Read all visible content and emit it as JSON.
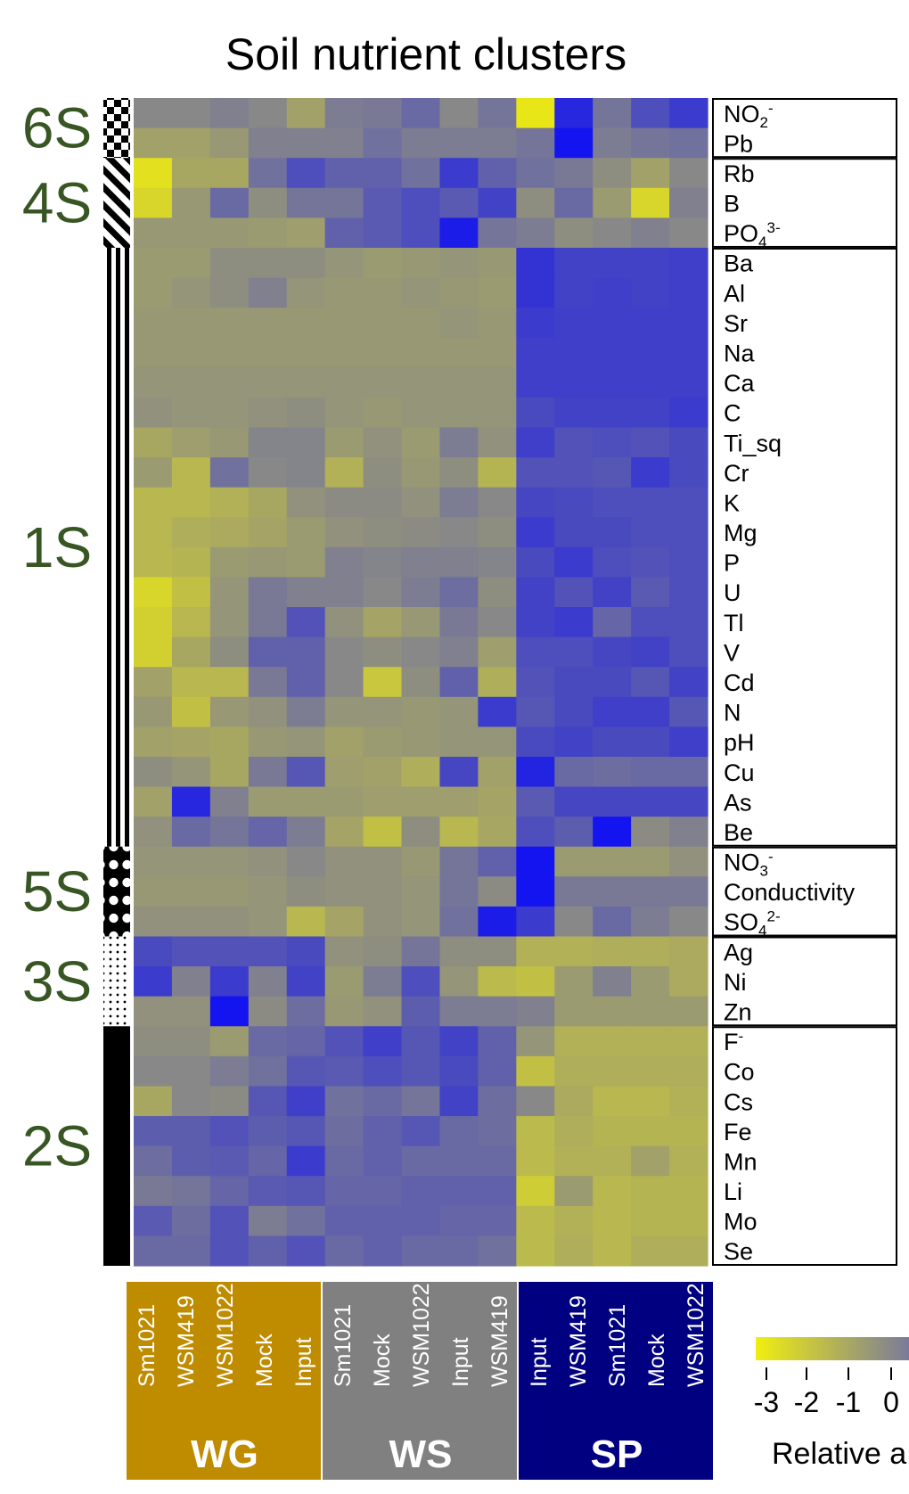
{
  "chart_data": {
    "type": "heatmap",
    "title": "Soil nutrient clusters",
    "colorscale": {
      "low_color": "#e8e617",
      "mid_color": "#888888",
      "high_color": "#1414f0",
      "range": [
        -3,
        3
      ],
      "ticks": [
        "-3",
        "-2",
        "-1",
        "0"
      ],
      "label": "Relative a"
    },
    "rows": [
      "NO2-",
      "Pb",
      "Rb",
      "B",
      "PO43-",
      "Ba",
      "Al",
      "Sr",
      "Na",
      "Ca",
      "C",
      "Ti_sq",
      "Cr",
      "K",
      "Mg",
      "P",
      "U",
      "Tl",
      "V",
      "Cd",
      "N",
      "pH",
      "Cu",
      "As",
      "Be",
      "NO3-",
      "Conductivity",
      "SO42-",
      "Ag",
      "Ni",
      "Zn",
      "F-",
      "Co",
      "Cs",
      "Fe",
      "Mn",
      "Li",
      "Mo",
      "Se"
    ],
    "row_labels": [
      {
        "base": "NO",
        "sub": "2",
        "sup": "-"
      },
      {
        "base": "Pb",
        "sub": "",
        "sup": ""
      },
      {
        "base": "Rb",
        "sub": "",
        "sup": ""
      },
      {
        "base": "B",
        "sub": "",
        "sup": ""
      },
      {
        "base": "PO",
        "sub": "4",
        "sup": "3-"
      },
      {
        "base": "Ba",
        "sub": "",
        "sup": ""
      },
      {
        "base": "Al",
        "sub": "",
        "sup": ""
      },
      {
        "base": "Sr",
        "sub": "",
        "sup": ""
      },
      {
        "base": "Na",
        "sub": "",
        "sup": ""
      },
      {
        "base": "Ca",
        "sub": "",
        "sup": ""
      },
      {
        "base": "C",
        "sub": "",
        "sup": ""
      },
      {
        "base": "Ti_sq",
        "sub": "",
        "sup": ""
      },
      {
        "base": "Cr",
        "sub": "",
        "sup": ""
      },
      {
        "base": "K",
        "sub": "",
        "sup": ""
      },
      {
        "base": "Mg",
        "sub": "",
        "sup": ""
      },
      {
        "base": "P",
        "sub": "",
        "sup": ""
      },
      {
        "base": "U",
        "sub": "",
        "sup": ""
      },
      {
        "base": "Tl",
        "sub": "",
        "sup": ""
      },
      {
        "base": "V",
        "sub": "",
        "sup": ""
      },
      {
        "base": "Cd",
        "sub": "",
        "sup": ""
      },
      {
        "base": "N",
        "sub": "",
        "sup": ""
      },
      {
        "base": "pH",
        "sub": "",
        "sup": ""
      },
      {
        "base": "Cu",
        "sub": "",
        "sup": ""
      },
      {
        "base": "As",
        "sub": "",
        "sup": ""
      },
      {
        "base": "Be",
        "sub": "",
        "sup": ""
      },
      {
        "base": "NO",
        "sub": "3",
        "sup": "-"
      },
      {
        "base": "Conductivity",
        "sub": "",
        "sup": ""
      },
      {
        "base": "SO",
        "sub": "4",
        "sup": "2-"
      },
      {
        "base": "Ag",
        "sub": "",
        "sup": ""
      },
      {
        "base": "Ni",
        "sub": "",
        "sup": ""
      },
      {
        "base": "Zn",
        "sub": "",
        "sup": ""
      },
      {
        "base": "F",
        "sub": "",
        "sup": "-"
      },
      {
        "base": "Co",
        "sub": "",
        "sup": ""
      },
      {
        "base": "Cs",
        "sub": "",
        "sup": ""
      },
      {
        "base": "Fe",
        "sub": "",
        "sup": ""
      },
      {
        "base": "Mn",
        "sub": "",
        "sup": ""
      },
      {
        "base": "Li",
        "sub": "",
        "sup": ""
      },
      {
        "base": "Mo",
        "sub": "",
        "sup": ""
      },
      {
        "base": "Se",
        "sub": "",
        "sup": ""
      }
    ],
    "columns": [
      {
        "sample": "Sm1021",
        "group": "WG"
      },
      {
        "sample": "WSM419",
        "group": "WG"
      },
      {
        "sample": "WSM1022",
        "group": "WG"
      },
      {
        "sample": "Mock",
        "group": "WG"
      },
      {
        "sample": "Input",
        "group": "WG"
      },
      {
        "sample": "Sm1021",
        "group": "WS"
      },
      {
        "sample": "Mock",
        "group": "WS"
      },
      {
        "sample": "WSM1022",
        "group": "WS"
      },
      {
        "sample": "Input",
        "group": "WS"
      },
      {
        "sample": "WSM419",
        "group": "WS"
      },
      {
        "sample": "Input",
        "group": "SP"
      },
      {
        "sample": "WSM419",
        "group": "SP"
      },
      {
        "sample": "Sm1021",
        "group": "SP"
      },
      {
        "sample": "Mock",
        "group": "SP"
      },
      {
        "sample": "WSM1022",
        "group": "SP"
      }
    ],
    "groups": [
      {
        "name": "WG",
        "color": "#bf8c00",
        "start": 0,
        "end": 4
      },
      {
        "name": "WS",
        "color": "#808080",
        "start": 5,
        "end": 9
      },
      {
        "name": "SP",
        "color": "#000080",
        "start": 10,
        "end": 14
      }
    ],
    "clusters": [
      {
        "name": "6S",
        "pattern": "checker",
        "rows": [
          0,
          1
        ]
      },
      {
        "name": "4S",
        "pattern": "diagonal",
        "rows": [
          2,
          4
        ]
      },
      {
        "name": "1S",
        "pattern": "vstripes",
        "rows": [
          5,
          24
        ]
      },
      {
        "name": "5S",
        "pattern": "dots-large",
        "rows": [
          25,
          27
        ]
      },
      {
        "name": "3S",
        "pattern": "dots-small",
        "rows": [
          28,
          30
        ]
      },
      {
        "name": "2S",
        "pattern": "solid",
        "rows": [
          31,
          38
        ]
      }
    ],
    "values": [
      [
        0.0,
        0.0,
        0.2,
        0.0,
        -0.8,
        0.3,
        0.4,
        0.8,
        0.0,
        0.5,
        -3.0,
        2.5,
        0.5,
        1.5,
        2.0
      ],
      [
        -0.8,
        -0.8,
        -0.5,
        0.2,
        0.2,
        0.2,
        0.6,
        0.3,
        0.3,
        0.3,
        0.5,
        3.0,
        0.3,
        0.5,
        0.6
      ],
      [
        -2.8,
        -1.0,
        -1.0,
        0.6,
        1.5,
        1.0,
        1.0,
        0.6,
        2.0,
        1.0,
        0.6,
        0.4,
        -0.2,
        -0.8,
        0.0
      ],
      [
        -2.5,
        -0.5,
        0.8,
        -0.2,
        0.5,
        0.5,
        1.2,
        1.5,
        1.2,
        1.8,
        -0.2,
        0.8,
        -0.6,
        -2.5,
        0.2
      ],
      [
        -0.5,
        -0.5,
        -0.5,
        -0.6,
        -0.7,
        1.0,
        1.2,
        1.5,
        2.8,
        0.5,
        0.3,
        -0.2,
        0.0,
        0.2,
        0.0
      ],
      [
        -0.6,
        -0.6,
        -0.2,
        -0.2,
        -0.2,
        -0.4,
        -0.6,
        -0.5,
        -0.4,
        -0.5,
        2.2,
        1.8,
        1.8,
        1.8,
        1.9
      ],
      [
        -0.6,
        -0.4,
        -0.2,
        0.2,
        -0.4,
        -0.5,
        -0.5,
        -0.4,
        -0.5,
        -0.6,
        2.2,
        1.8,
        1.9,
        1.8,
        1.9
      ],
      [
        -0.5,
        -0.5,
        -0.5,
        -0.5,
        -0.5,
        -0.5,
        -0.5,
        -0.5,
        -0.4,
        -0.5,
        2.0,
        1.9,
        1.9,
        1.9,
        1.9
      ],
      [
        -0.5,
        -0.5,
        -0.5,
        -0.5,
        -0.5,
        -0.5,
        -0.5,
        -0.5,
        -0.5,
        -0.5,
        1.9,
        1.9,
        1.9,
        1.9,
        1.9
      ],
      [
        -0.4,
        -0.4,
        -0.4,
        -0.4,
        -0.4,
        -0.4,
        -0.4,
        -0.4,
        -0.4,
        -0.4,
        1.9,
        1.9,
        1.9,
        1.9,
        1.9
      ],
      [
        -0.3,
        -0.4,
        -0.4,
        -0.3,
        -0.2,
        -0.4,
        -0.5,
        -0.4,
        -0.4,
        -0.4,
        1.6,
        1.8,
        1.8,
        1.8,
        2.0
      ],
      [
        -1.0,
        -0.7,
        -0.5,
        0.1,
        0.1,
        -0.6,
        -0.3,
        -0.6,
        0.3,
        -0.3,
        1.9,
        1.4,
        1.5,
        1.4,
        1.6
      ],
      [
        -0.6,
        -1.5,
        0.6,
        0.0,
        0.1,
        -1.3,
        -0.2,
        -0.5,
        -0.2,
        -1.4,
        1.4,
        1.4,
        1.3,
        2.0,
        1.6
      ],
      [
        -1.5,
        -1.5,
        -1.3,
        -1.0,
        -0.3,
        -0.1,
        -0.1,
        -0.3,
        0.3,
        0.0,
        1.7,
        1.6,
        1.5,
        1.5,
        1.5
      ],
      [
        -1.5,
        -1.2,
        -1.1,
        -0.9,
        -0.6,
        -0.3,
        -0.2,
        -0.1,
        0.0,
        -0.2,
        2.0,
        1.6,
        1.6,
        1.5,
        1.5
      ],
      [
        -1.5,
        -1.4,
        -0.6,
        -0.5,
        -0.6,
        0.2,
        0.1,
        0.2,
        0.2,
        0.1,
        1.6,
        2.0,
        1.5,
        1.4,
        1.5
      ],
      [
        -2.5,
        -1.8,
        -0.4,
        0.4,
        0.2,
        0.2,
        0.0,
        0.3,
        0.7,
        -0.2,
        1.8,
        1.4,
        1.8,
        1.2,
        1.5
      ],
      [
        -2.3,
        -1.5,
        -0.4,
        0.4,
        1.4,
        -0.3,
        -0.9,
        -0.5,
        0.4,
        0.0,
        1.8,
        2.0,
        0.9,
        1.5,
        1.5
      ],
      [
        -2.3,
        -1.0,
        -0.2,
        1.0,
        1.0,
        0.0,
        -0.2,
        0.0,
        0.2,
        -0.7,
        1.5,
        1.5,
        1.7,
        1.8,
        1.5
      ],
      [
        -0.8,
        -1.5,
        -1.5,
        0.4,
        1.0,
        0.0,
        -2.0,
        -0.2,
        1.0,
        -1.2,
        1.4,
        1.6,
        1.6,
        1.3,
        1.8
      ],
      [
        -0.5,
        -1.8,
        -0.5,
        -0.3,
        0.3,
        -0.4,
        -0.4,
        -0.5,
        -0.4,
        2.0,
        1.3,
        1.6,
        1.9,
        1.9,
        1.3
      ],
      [
        -0.8,
        -0.9,
        -1.0,
        -0.5,
        -0.4,
        -0.8,
        -0.6,
        -0.5,
        -0.4,
        -0.4,
        1.6,
        1.8,
        1.6,
        1.6,
        1.9
      ],
      [
        -0.2,
        -0.4,
        -1.0,
        0.4,
        1.3,
        -0.7,
        -0.8,
        -1.2,
        1.7,
        -0.8,
        2.6,
        0.8,
        0.7,
        0.8,
        0.8
      ],
      [
        -0.8,
        2.5,
        0.2,
        -0.6,
        -0.6,
        -0.6,
        -0.7,
        -0.7,
        -0.7,
        -0.9,
        1.2,
        1.7,
        1.7,
        1.7,
        1.7
      ],
      [
        -0.3,
        0.8,
        0.5,
        0.9,
        0.3,
        -0.9,
        -1.8,
        -0.2,
        -1.5,
        -1.0,
        1.5,
        1.1,
        3.0,
        -0.1,
        0.2
      ],
      [
        -0.4,
        -0.4,
        -0.4,
        -0.3,
        0.0,
        -0.3,
        -0.3,
        -0.5,
        0.5,
        1.0,
        3.0,
        -0.6,
        -0.6,
        -0.6,
        -0.3
      ],
      [
        -0.5,
        -0.5,
        -0.5,
        -0.4,
        -0.2,
        -0.3,
        -0.3,
        -0.4,
        0.5,
        -0.1,
        3.0,
        0.4,
        0.4,
        0.4,
        0.4
      ],
      [
        -0.3,
        -0.3,
        -0.3,
        -0.4,
        -1.5,
        -0.9,
        -0.3,
        -0.4,
        0.6,
        2.8,
        2.0,
        0.0,
        0.8,
        0.3,
        0.0
      ],
      [
        1.6,
        1.4,
        1.4,
        1.4,
        1.6,
        -0.3,
        -0.2,
        0.5,
        -0.2,
        -0.2,
        -1.3,
        -1.3,
        -1.2,
        -1.2,
        -1.1
      ],
      [
        2.0,
        0.2,
        2.0,
        0.2,
        1.8,
        -0.6,
        0.3,
        1.5,
        -0.4,
        -1.6,
        -1.8,
        -0.6,
        0.2,
        -0.6,
        -1.1
      ],
      [
        -0.3,
        -0.3,
        3.0,
        -0.1,
        0.7,
        -0.5,
        -0.3,
        1.1,
        0.3,
        0.3,
        0.2,
        -0.6,
        -0.6,
        -0.6,
        -0.6
      ],
      [
        -0.2,
        -0.2,
        -0.6,
        0.8,
        0.9,
        1.4,
        1.9,
        1.3,
        1.8,
        1.0,
        -0.4,
        -1.3,
        -1.3,
        -1.3,
        -1.3
      ],
      [
        0.0,
        0.0,
        0.3,
        0.6,
        1.3,
        1.2,
        1.5,
        1.3,
        1.6,
        1.0,
        -1.8,
        -1.2,
        -1.2,
        -1.2,
        -1.2
      ],
      [
        -1.0,
        0.0,
        -0.1,
        1.3,
        1.9,
        0.6,
        0.8,
        0.5,
        1.8,
        0.7,
        0.0,
        -1.1,
        -1.5,
        -1.5,
        -1.3
      ],
      [
        1.1,
        1.1,
        1.4,
        1.1,
        1.3,
        0.7,
        1.0,
        1.3,
        0.8,
        0.7,
        -1.6,
        -1.2,
        -1.4,
        -1.4,
        -1.4
      ],
      [
        0.7,
        1.1,
        1.2,
        0.9,
        2.0,
        0.8,
        1.0,
        0.8,
        0.8,
        0.8,
        -1.6,
        -1.3,
        -1.3,
        -0.8,
        -1.3
      ],
      [
        0.4,
        0.5,
        0.9,
        1.2,
        1.3,
        0.9,
        0.9,
        1.0,
        1.0,
        1.0,
        -2.2,
        -0.6,
        -1.5,
        -1.4,
        -1.4
      ],
      [
        1.2,
        0.7,
        1.4,
        0.3,
        0.6,
        1.0,
        1.0,
        1.0,
        0.9,
        0.9,
        -1.6,
        -1.3,
        -1.5,
        -1.4,
        -1.4
      ],
      [
        0.8,
        0.8,
        1.4,
        1.0,
        1.4,
        0.8,
        1.0,
        0.8,
        0.8,
        0.6,
        -1.6,
        -1.2,
        -1.5,
        -1.2,
        -1.2
      ]
    ]
  }
}
